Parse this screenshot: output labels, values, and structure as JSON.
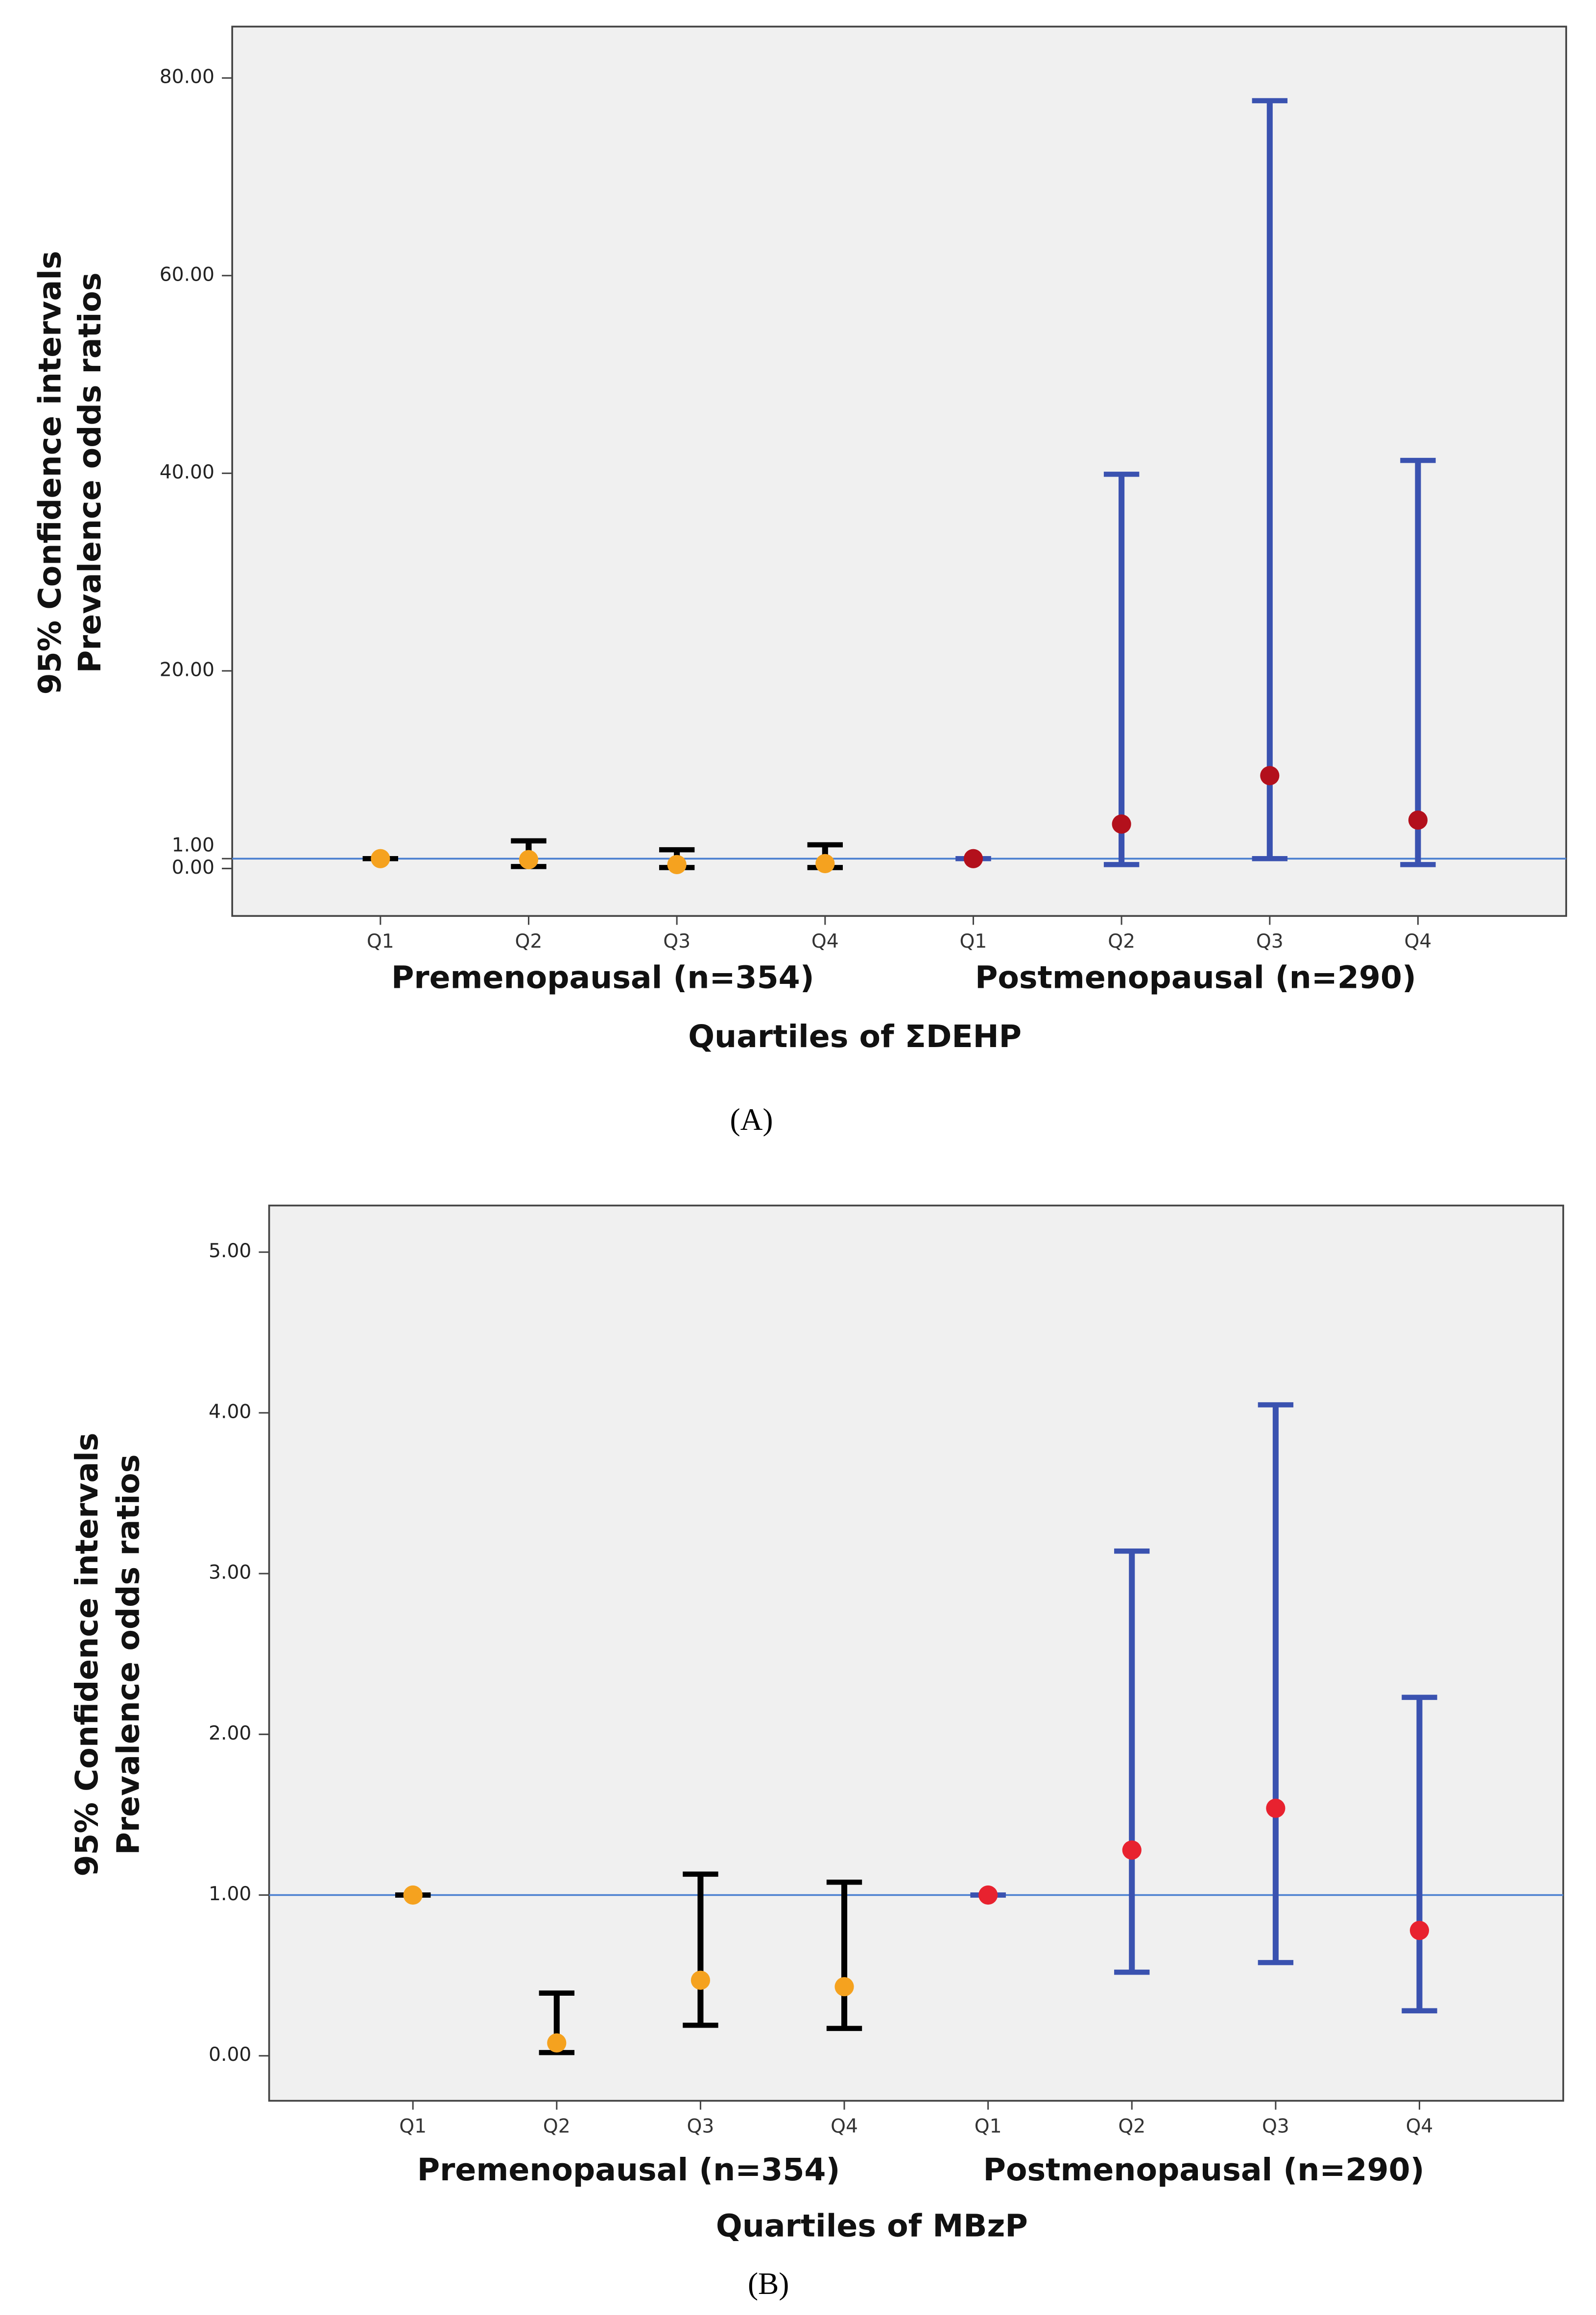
{
  "chart_data": [
    {
      "type": "errorbar",
      "caption": "(A)",
      "x_label": "Quartiles of ΣDEHP",
      "y_label": [
        "95% Confidence intervals",
        "Prevalence odds ratios"
      ],
      "categories": [
        "Q1",
        "Q2",
        "Q3",
        "Q4",
        "Q1",
        "Q2",
        "Q3",
        "Q4"
      ],
      "ylim": [
        -4.8,
        85.2
      ],
      "yticks": [
        {
          "value": 0,
          "label": "0.00"
        },
        {
          "value": 1,
          "label": "1.00"
        },
        {
          "value": 20,
          "label": "20.00"
        },
        {
          "value": 40,
          "label": "40.00"
        },
        {
          "value": 60,
          "label": "60.00"
        },
        {
          "value": 80,
          "label": "80.00"
        }
      ],
      "reference_line": 1,
      "reference_color": "#4a7fd0",
      "series": [
        {
          "name": "Premenopausal (n=354)",
          "color": "#000000",
          "marker_color": "#f5a21f",
          "values": [
            1,
            0.9,
            0.4,
            0.5,
            null,
            null,
            null,
            null
          ],
          "lower": [
            1,
            0.2,
            0.1,
            0.1,
            null,
            null,
            null,
            null
          ],
          "upper": [
            1,
            2.8,
            1.9,
            2.4,
            null,
            null,
            null,
            null
          ]
        },
        {
          "name": "Postmenopausal (n=290)",
          "color": "#3a52b0",
          "marker_color": "#b3101c",
          "values": [
            null,
            null,
            null,
            null,
            1,
            4.5,
            9.4,
            4.9
          ],
          "lower": [
            null,
            null,
            null,
            null,
            1,
            0.4,
            1.0,
            0.4
          ],
          "upper": [
            null,
            null,
            null,
            null,
            1,
            39.9,
            77.7,
            41.3
          ]
        }
      ]
    },
    {
      "type": "errorbar",
      "caption": "(B)",
      "x_label": "Quartiles of MBzP",
      "y_label": [
        "95% Confidence intervals",
        "Prevalence odds ratios"
      ],
      "categories": [
        "Q1",
        "Q2",
        "Q3",
        "Q4",
        "Q1",
        "Q2",
        "Q3",
        "Q4"
      ],
      "ylim": [
        -0.28,
        5.29
      ],
      "yticks": [
        {
          "value": 0,
          "label": "0.00"
        },
        {
          "value": 1,
          "label": "1.00"
        },
        {
          "value": 2,
          "label": "2.00"
        },
        {
          "value": 3,
          "label": "3.00"
        },
        {
          "value": 4,
          "label": "4.00"
        },
        {
          "value": 5,
          "label": "5.00"
        }
      ],
      "reference_line": 1,
      "reference_color": "#4a7fd0",
      "series": [
        {
          "name": "Premenopausal (n=354)",
          "color": "#000000",
          "marker_color": "#f5a21f",
          "values": [
            1,
            0.08,
            0.47,
            0.43,
            null,
            null,
            null,
            null
          ],
          "lower": [
            1,
            0.02,
            0.19,
            0.17,
            null,
            null,
            null,
            null
          ],
          "upper": [
            1,
            0.39,
            1.13,
            1.08,
            null,
            null,
            null,
            null
          ]
        },
        {
          "name": "Postmenopausal (n=290)",
          "color": "#3a52b0",
          "marker_color": "#e8222f",
          "values": [
            null,
            null,
            null,
            null,
            1,
            1.28,
            1.54,
            0.78
          ],
          "lower": [
            null,
            null,
            null,
            null,
            1,
            0.52,
            0.58,
            0.28
          ],
          "upper": [
            null,
            null,
            null,
            null,
            1,
            3.14,
            4.05,
            2.23
          ]
        }
      ]
    }
  ]
}
